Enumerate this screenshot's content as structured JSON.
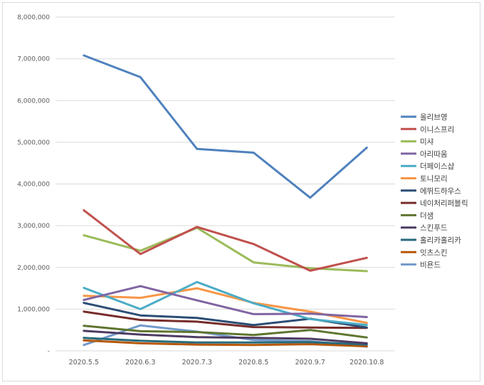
{
  "chart_data": {
    "type": "line",
    "title": "",
    "xlabel": "",
    "ylabel": "",
    "categories": [
      "2020.5.5",
      "2020.6.3",
      "2020.7.3",
      "2020.8.5",
      "2020.9.7",
      "2020.10.8"
    ],
    "ylim": [
      0,
      8000000
    ],
    "yticks": [
      0,
      1000000,
      2000000,
      3000000,
      4000000,
      5000000,
      6000000,
      7000000,
      8000000
    ],
    "ytick_labels": [
      "-",
      "1,000,000",
      "2,000,000",
      "3,000,000",
      "4,000,000",
      "5,000,000",
      "6,000,000",
      "7,000,000",
      "8,000,000"
    ],
    "grid": true,
    "legend_position": "right",
    "series": [
      {
        "name": "올리브영",
        "color": "#4f81bd",
        "values": [
          7080000,
          6560000,
          4840000,
          4750000,
          3670000,
          4870000
        ]
      },
      {
        "name": "이니스프리",
        "color": "#c0504d",
        "values": [
          3370000,
          2320000,
          2970000,
          2560000,
          1920000,
          2230000
        ]
      },
      {
        "name": "미샤",
        "color": "#9bbb59",
        "values": [
          2770000,
          2400000,
          2950000,
          2120000,
          1980000,
          1910000
        ]
      },
      {
        "name": "아리따움",
        "color": "#8064a2",
        "values": [
          1220000,
          1550000,
          1210000,
          880000,
          890000,
          810000
        ]
      },
      {
        "name": "더페이스샵",
        "color": "#4bacc6",
        "values": [
          1510000,
          1000000,
          1650000,
          1140000,
          760000,
          620000
        ]
      },
      {
        "name": "토니모리",
        "color": "#f79646",
        "values": [
          1320000,
          1270000,
          1500000,
          1150000,
          940000,
          670000
        ]
      },
      {
        "name": "에뛰드하우스",
        "color": "#2c4d75",
        "values": [
          1150000,
          850000,
          790000,
          620000,
          770000,
          560000
        ]
      },
      {
        "name": "네이처리퍼블릭",
        "color": "#772c2a",
        "values": [
          940000,
          740000,
          700000,
          570000,
          560000,
          550000
        ]
      },
      {
        "name": "더샘",
        "color": "#5f7530",
        "values": [
          600000,
          470000,
          450000,
          380000,
          500000,
          320000
        ]
      },
      {
        "name": "스킨푸드",
        "color": "#4d3b62",
        "values": [
          480000,
          390000,
          330000,
          310000,
          290000,
          180000
        ]
      },
      {
        "name": "홀리카홀리카",
        "color": "#276a7c",
        "values": [
          310000,
          240000,
          200000,
          200000,
          210000,
          150000
        ]
      },
      {
        "name": "잇츠스킨",
        "color": "#b65708",
        "values": [
          250000,
          180000,
          150000,
          140000,
          160000,
          110000
        ]
      },
      {
        "name": "비욘드",
        "color": "#729aca",
        "values": [
          140000,
          610000,
          460000,
          260000,
          230000,
          100000
        ]
      }
    ]
  }
}
